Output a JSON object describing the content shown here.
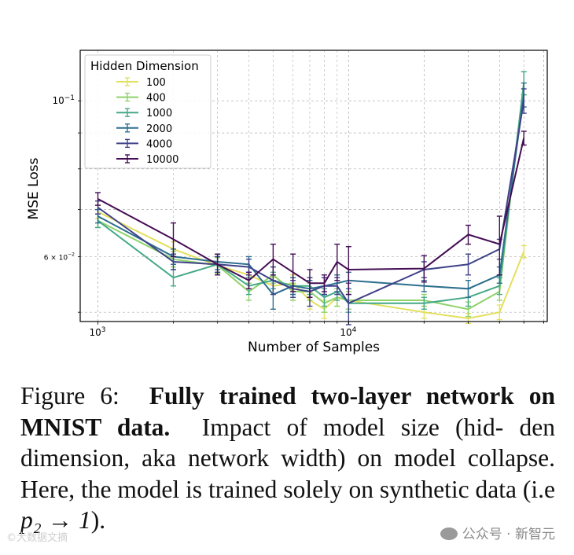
{
  "chart_data": {
    "type": "line",
    "ylabel": "MSE Loss",
    "xlabel": "Number of Samples",
    "xscale": "log",
    "yscale": "log",
    "xlim": [
      850,
      62000
    ],
    "ylim": [
      0.0485,
      0.118
    ],
    "grid": true,
    "x_tick_labels": [
      {
        "value": 1000,
        "label": "10^3"
      },
      {
        "value": 10000,
        "label": "10^4"
      }
    ],
    "y_tick_labels": [
      {
        "value": 0.1,
        "label": "10^-1"
      },
      {
        "value": 0.06,
        "label": "6 × 10^-2"
      }
    ],
    "legend": {
      "title": "Hidden Dimension",
      "position": "top-left"
    },
    "x": [
      1000,
      2000,
      3000,
      4000,
      5000,
      6000,
      7000,
      8000,
      9000,
      10000,
      20000,
      30000,
      40000,
      50000
    ],
    "series": [
      {
        "name": "100",
        "color": "#e3e05f",
        "values": [
          0.0695,
          0.0615,
          0.0583,
          0.0565,
          0.0545,
          0.055,
          0.052,
          0.0505,
          0.0525,
          0.052,
          0.05,
          0.049,
          0.05,
          0.061
        ],
        "errors": [
          0.0015,
          0.0015,
          0.0015,
          0.0015,
          0.0015,
          0.0015,
          0.0015,
          0.0015,
          0.0015,
          0.0015,
          0.001,
          0.0008,
          0.0012,
          0.0012
        ]
      },
      {
        "name": "400",
        "color": "#8fd26b",
        "values": [
          0.0675,
          0.0595,
          0.0583,
          0.0535,
          0.0565,
          0.0535,
          0.0535,
          0.0515,
          0.0525,
          0.052,
          0.052,
          0.0505,
          0.0535,
          0.106
        ],
        "errors": [
          0.0015,
          0.0015,
          0.0015,
          0.0015,
          0.0015,
          0.0015,
          0.0015,
          0.0015,
          0.0015,
          0.0015,
          0.001,
          0.0012,
          0.0015,
          0.004
        ]
      },
      {
        "name": "1000",
        "color": "#44a986",
        "values": [
          0.0675,
          0.056,
          0.0585,
          0.0545,
          0.0555,
          0.0545,
          0.0545,
          0.0525,
          0.0535,
          0.0515,
          0.0515,
          0.0525,
          0.0545,
          0.106
        ],
        "errors": [
          0.0015,
          0.0015,
          0.0015,
          0.0015,
          0.0015,
          0.0015,
          0.0015,
          0.0015,
          0.0015,
          0.0015,
          0.001,
          0.0015,
          0.0015,
          0.004
        ]
      },
      {
        "name": "2000",
        "color": "#2d6e8e",
        "values": [
          0.0685,
          0.06,
          0.059,
          0.0585,
          0.053,
          0.0545,
          0.054,
          0.0545,
          0.055,
          0.0555,
          0.0545,
          0.054,
          0.0565,
          0.102
        ],
        "errors": [
          0.0015,
          0.0015,
          0.0015,
          0.0015,
          0.0025,
          0.0015,
          0.0015,
          0.0015,
          0.0015,
          0.0015,
          0.001,
          0.0015,
          0.0015,
          0.004
        ]
      },
      {
        "name": "4000",
        "color": "#3f4289",
        "values": [
          0.0705,
          0.059,
          0.0585,
          0.058,
          0.0555,
          0.054,
          0.0535,
          0.0545,
          0.0545,
          0.0515,
          0.0575,
          0.0585,
          0.0615,
          0.1
        ],
        "errors": [
          0.0015,
          0.0015,
          0.0015,
          0.0015,
          0.0025,
          0.0015,
          0.0025,
          0.0015,
          0.0015,
          0.0035,
          0.0015,
          0.002,
          0.002,
          0.004
        ]
      },
      {
        "name": "10000",
        "color": "#440d54",
        "values": [
          0.0725,
          0.0635,
          0.0585,
          0.0555,
          0.0595,
          0.057,
          0.055,
          0.055,
          0.059,
          0.0575,
          0.0577,
          0.0645,
          0.0625,
          0.0885
        ],
        "errors": [
          0.0015,
          0.0035,
          0.002,
          0.0015,
          0.003,
          0.0035,
          0.0025,
          0.0015,
          0.0035,
          0.0045,
          0.0025,
          0.002,
          0.006,
          0.002
        ]
      }
    ]
  },
  "caption": {
    "figure_label": "Figure 6:",
    "bold_title": "Fully trained two-layer network on MNIST data.",
    "text": "Impact of model size (hid- den dimension, aka network width) on model collapse. Here, the model is trained solely on synthetic data (i.e",
    "math": "p₂ → 1",
    "tail": ")."
  },
  "watermark": {
    "right": "公众号 · 新智元",
    "left": "©大数据文摘"
  }
}
